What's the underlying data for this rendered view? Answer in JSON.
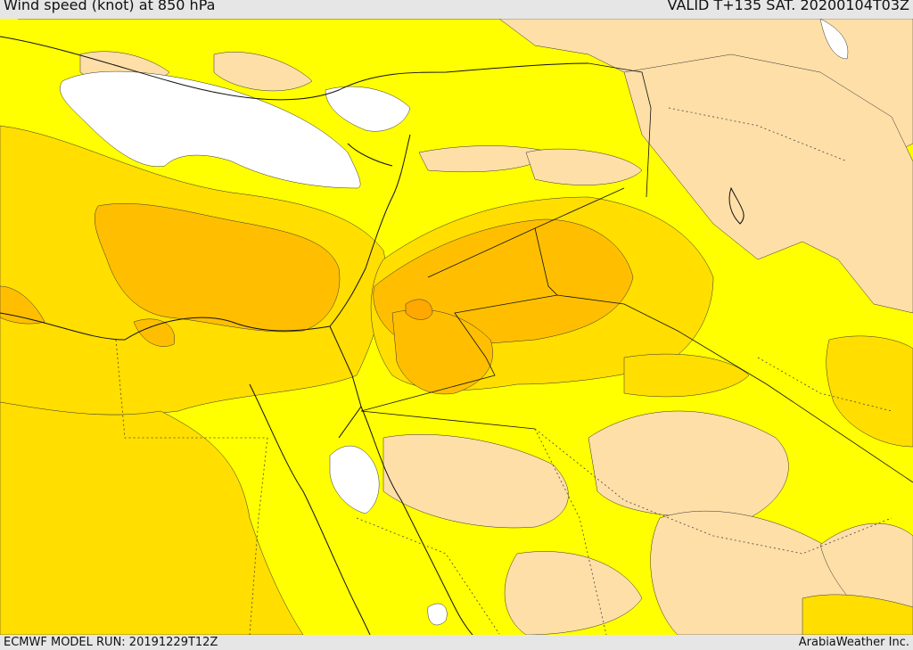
{
  "header": {
    "title": "Wind speed (knot) at 850 hPa",
    "valid": "VALID T+135 SAT. 20200104T03Z"
  },
  "footer": {
    "model_run": "ECMWF MODEL RUN: 20191229T12Z",
    "credit": "ArabiaWeather Inc."
  },
  "colors": {
    "calm": "#ffffff",
    "light": "#ffdfa8",
    "yellow": "#ffff00",
    "gold": "#ffde00",
    "amber": "#ffbf00",
    "orange": "#ffa800",
    "coast": "#111111"
  }
}
